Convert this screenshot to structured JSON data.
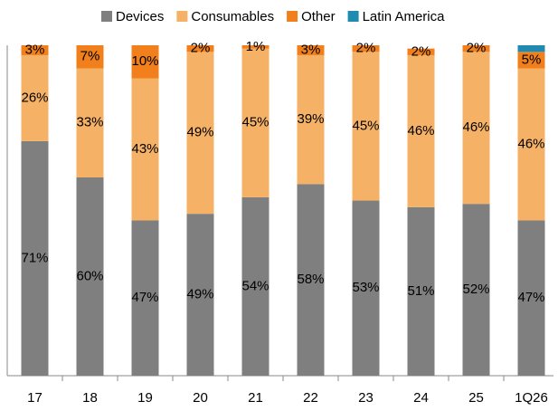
{
  "chart_data": {
    "type": "stacked_bar",
    "categories": [
      "17",
      "18",
      "19",
      "20",
      "21",
      "22",
      "23",
      "24",
      "25",
      "1Q26"
    ],
    "series": [
      {
        "name": "Devices",
        "color": "#7f7f7f",
        "values": [
          71,
          60,
          47,
          49,
          54,
          58,
          53,
          51,
          52,
          47
        ],
        "value_labels": [
          "71%",
          "60%",
          "47%",
          "49%",
          "54%",
          "58%",
          "53%",
          "51%",
          "52%",
          "47%"
        ]
      },
      {
        "name": "Consumables",
        "color": "#f5b266",
        "values": [
          26,
          33,
          43,
          49,
          45,
          39,
          45,
          46,
          46,
          46
        ],
        "value_labels": [
          "26%",
          "33%",
          "43%",
          "49%",
          "45%",
          "39%",
          "45%",
          "46%",
          "46%",
          "46%"
        ]
      },
      {
        "name": "Other",
        "color": "#f07f1c",
        "values": [
          3,
          7,
          10,
          2,
          1,
          3,
          2,
          2,
          2,
          5
        ],
        "value_labels": [
          "3%",
          "7%",
          "10%",
          "2%",
          "1%",
          "3%",
          "2%",
          "2%",
          "2%",
          "5%"
        ]
      },
      {
        "name": "Latin America",
        "color": "#1f8bb0",
        "values": [
          null,
          null,
          null,
          null,
          null,
          null,
          null,
          null,
          null,
          2
        ]
      }
    ],
    "ylim": [
      0,
      100
    ],
    "legend": "top"
  }
}
